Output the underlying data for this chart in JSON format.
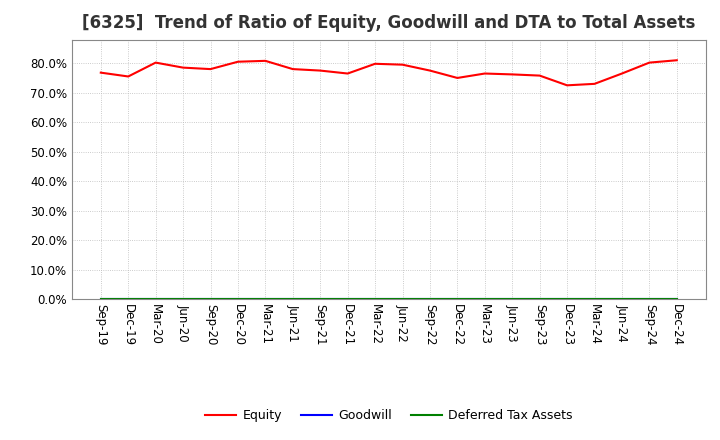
{
  "title": "[6325]  Trend of Ratio of Equity, Goodwill and DTA to Total Assets",
  "x_labels": [
    "Sep-19",
    "Dec-19",
    "Mar-20",
    "Jun-20",
    "Sep-20",
    "Dec-20",
    "Mar-21",
    "Jun-21",
    "Sep-21",
    "Dec-21",
    "Mar-22",
    "Jun-22",
    "Sep-22",
    "Dec-22",
    "Mar-23",
    "Jun-23",
    "Sep-23",
    "Dec-23",
    "Mar-24",
    "Jun-24",
    "Sep-24",
    "Dec-24"
  ],
  "equity": [
    76.8,
    75.5,
    80.2,
    78.5,
    78.0,
    80.5,
    80.8,
    78.0,
    77.5,
    76.5,
    79.8,
    79.5,
    77.5,
    75.0,
    76.5,
    76.2,
    75.8,
    72.5,
    73.0,
    76.5,
    80.2,
    81.0
  ],
  "goodwill": [
    0.0,
    0.0,
    0.0,
    0.0,
    0.0,
    0.0,
    0.0,
    0.0,
    0.0,
    0.0,
    0.0,
    0.0,
    0.0,
    0.0,
    0.0,
    0.0,
    0.0,
    0.0,
    0.0,
    0.0,
    0.0,
    0.0
  ],
  "dta": [
    0.0,
    0.0,
    0.0,
    0.0,
    0.0,
    0.0,
    0.0,
    0.0,
    0.0,
    0.0,
    0.0,
    0.0,
    0.0,
    0.0,
    0.0,
    0.0,
    0.0,
    0.0,
    0.0,
    0.0,
    0.0,
    0.0
  ],
  "equity_color": "#FF0000",
  "goodwill_color": "#0000FF",
  "dta_color": "#008000",
  "ylim": [
    0,
    88
  ],
  "yticks": [
    0,
    10,
    20,
    30,
    40,
    50,
    60,
    70,
    80
  ],
  "background_color": "#FFFFFF",
  "plot_bg_color": "#FFFFFF",
  "grid_color": "#BBBBBB",
  "title_fontsize": 12,
  "legend_labels": [
    "Equity",
    "Goodwill",
    "Deferred Tax Assets"
  ]
}
